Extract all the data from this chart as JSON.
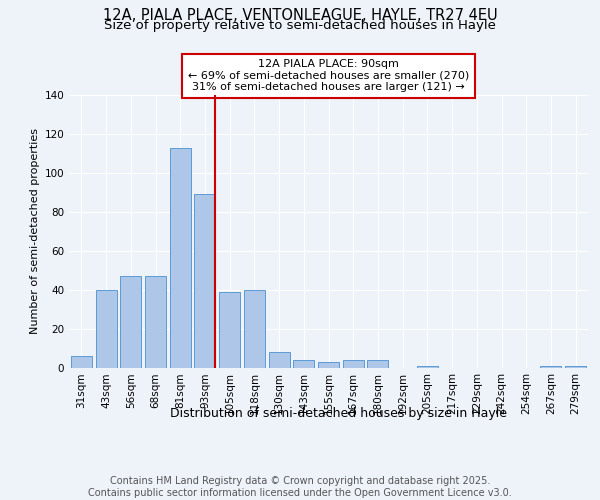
{
  "title1": "12A, PIALA PLACE, VENTONLEAGUE, HAYLE, TR27 4EU",
  "title2": "Size of property relative to semi-detached houses in Hayle",
  "xlabel": "Distribution of semi-detached houses by size in Hayle",
  "ylabel": "Number of semi-detached properties",
  "categories": [
    "31sqm",
    "43sqm",
    "56sqm",
    "68sqm",
    "81sqm",
    "93sqm",
    "105sqm",
    "118sqm",
    "130sqm",
    "143sqm",
    "155sqm",
    "167sqm",
    "180sqm",
    "192sqm",
    "205sqm",
    "217sqm",
    "229sqm",
    "242sqm",
    "254sqm",
    "267sqm",
    "279sqm"
  ],
  "values": [
    6,
    40,
    47,
    47,
    113,
    89,
    39,
    40,
    8,
    4,
    3,
    4,
    4,
    0,
    1,
    0,
    0,
    0,
    0,
    1,
    1
  ],
  "bar_color": "#aec6e8",
  "bar_edge_color": "#5b9bd5",
  "red_line_index": 5,
  "red_line_color": "#cc0000",
  "annotation_title": "12A PIALA PLACE: 90sqm",
  "annotation_line1": "← 69% of semi-detached houses are smaller (270)",
  "annotation_line2": "31% of semi-detached houses are larger (121) →",
  "annotation_box_color": "#ffffff",
  "annotation_box_edge": "#cc0000",
  "ylim": [
    0,
    140
  ],
  "yticks": [
    0,
    20,
    40,
    60,
    80,
    100,
    120,
    140
  ],
  "footer_line1": "Contains HM Land Registry data © Crown copyright and database right 2025.",
  "footer_line2": "Contains public sector information licensed under the Open Government Licence v3.0.",
  "bg_color": "#eef2f9",
  "plot_bg_color": "#eef2f9",
  "title1_fontsize": 10.5,
  "title2_fontsize": 9.5,
  "xlabel_fontsize": 9,
  "ylabel_fontsize": 8,
  "tick_fontsize": 7.5,
  "footer_fontsize": 7,
  "annotation_fontsize": 8
}
